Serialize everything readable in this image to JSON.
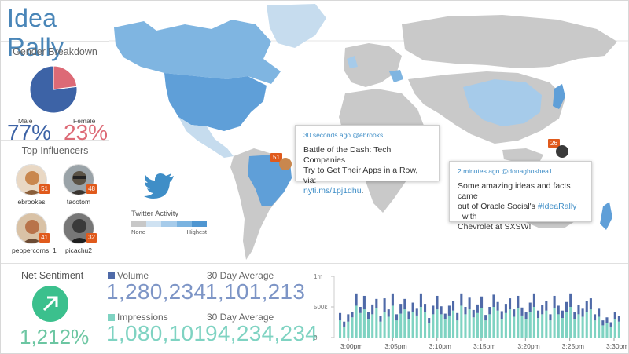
{
  "brand": {
    "title": "Idea Rally"
  },
  "gender": {
    "title": "Gender Breakdown",
    "male_label": "Male",
    "male_value": "77%",
    "male_fraction": 0.77,
    "female_label": "Female",
    "female_value": "23%",
    "female_fraction": 0.23,
    "colors": {
      "male": "#3d63a6",
      "female": "#dd6a76"
    }
  },
  "influencers": {
    "title": "Top Influencers",
    "items": [
      {
        "name": "ebrookes",
        "count": "51",
        "avatar_color": "#c9874e"
      },
      {
        "name": "tacotom",
        "count": "48",
        "avatar_color": "#5a5245"
      },
      {
        "name": "peppercorns_1",
        "count": "41",
        "avatar_color": "#b8734a"
      },
      {
        "name": "picachu2",
        "count": "32",
        "avatar_color": "#3a3a3a"
      }
    ]
  },
  "map": {
    "twitter_icon": "twitter-bird-icon",
    "legend": {
      "title": "Twitter Activity",
      "low": "None",
      "high": "Highest",
      "colors": [
        "#c8c8c8",
        "#cfe2f2",
        "#a6cbea",
        "#7ab3e0",
        "#4f96d1"
      ]
    },
    "markers": [
      {
        "count": "51"
      },
      {
        "count": "26"
      }
    ],
    "tweets": [
      {
        "meta": "30 seconds ago @ebrooks",
        "line1": "Battle of the Dash: Tech Companies",
        "line2": "Try to Get Their Apps in a Row, via:",
        "link": "nyti.ms/1pj1dhu",
        "after": "."
      },
      {
        "meta": "2 minutes ago @donaghoshea1",
        "line1": "Some amazing ideas and facts came",
        "line2a": "out of Oracle Social's ",
        "hashtag": "#IdeaRally",
        "line2b": "  with",
        "line3": "Chevrolet at SXSW!"
      }
    ]
  },
  "sentiment": {
    "title": "Net Sentiment",
    "value": "1,212%",
    "icon": "arrow-up-right-icon",
    "color": "#3bc08d"
  },
  "metrics": {
    "volume_label": "Volume",
    "volume_value": "1,280,234",
    "volume_avg_label": "30 Day Average",
    "volume_avg_value": "1,101,213",
    "impressions_label": "Impressions",
    "impressions_value": "1,080,101",
    "impressions_avg_label": "30 Day Average",
    "impressions_avg_value": "94,234,234",
    "colors": {
      "volume": "#4f6aa8",
      "impressions": "#7fd3c2"
    }
  },
  "chart_data": {
    "type": "bar",
    "stacked": true,
    "y_ticks": [
      "1m",
      "500k",
      "0"
    ],
    "ylim": [
      0,
      1000000
    ],
    "x_ticks": [
      "3:00pm",
      "3:05pm",
      "3:10pm",
      "3:15pm",
      "3:20pm",
      "3:25pm",
      "3:30pm"
    ],
    "series": [
      {
        "name": "Impressions",
        "values": [
          280000,
          180000,
          260000,
          330000,
          520000,
          400000,
          460000,
          300000,
          380000,
          480000,
          260000,
          420000,
          340000,
          520000,
          280000,
          390000,
          460000,
          300000,
          420000,
          360000,
          500000,
          420000,
          240000,
          380000,
          460000,
          380000,
          300000,
          360000,
          440000,
          280000,
          520000,
          380000,
          460000,
          330000,
          400000,
          480000,
          280000,
          380000,
          500000,
          440000,
          300000,
          400000,
          460000,
          340000,
          480000,
          360000,
          300000,
          420000,
          500000,
          320000,
          380000,
          440000,
          280000,
          480000,
          380000,
          320000,
          420000,
          500000,
          300000,
          380000,
          340000,
          420000,
          460000,
          280000,
          340000,
          200000,
          240000,
          180000,
          300000,
          260000
        ]
      },
      {
        "name": "Volume",
        "values": [
          120000,
          80000,
          120000,
          90000,
          200000,
          100000,
          220000,
          120000,
          160000,
          150000,
          90000,
          220000,
          120000,
          200000,
          100000,
          160000,
          170000,
          130000,
          150000,
          110000,
          220000,
          130000,
          80000,
          140000,
          220000,
          130000,
          90000,
          160000,
          150000,
          120000,
          200000,
          120000,
          190000,
          120000,
          140000,
          190000,
          90000,
          120000,
          200000,
          140000,
          130000,
          150000,
          180000,
          120000,
          200000,
          130000,
          110000,
          150000,
          220000,
          120000,
          150000,
          160000,
          100000,
          200000,
          140000,
          120000,
          160000,
          220000,
          110000,
          150000,
          130000,
          170000,
          180000,
          100000,
          130000,
          80000,
          90000,
          70000,
          110000,
          90000
        ]
      }
    ]
  }
}
